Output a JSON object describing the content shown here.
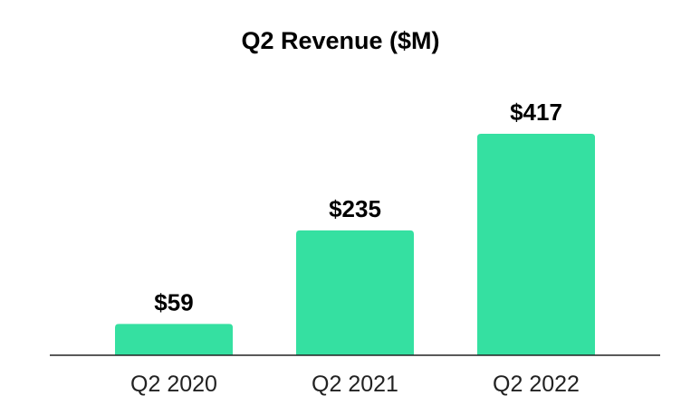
{
  "chart_data": {
    "type": "bar",
    "title": "Q2 Revenue ($M)",
    "xlabel": "",
    "ylabel": "",
    "categories": [
      "Q2 2020",
      "Q2 2021",
      "Q2 2022"
    ],
    "values": [
      59,
      235,
      417
    ],
    "data_labels": [
      "$59",
      "$235",
      "$417"
    ],
    "ylim": [
      0,
      417
    ],
    "grid": false,
    "legend": "none",
    "bar_color": "#35e0a1",
    "axis_color": "#222222"
  }
}
